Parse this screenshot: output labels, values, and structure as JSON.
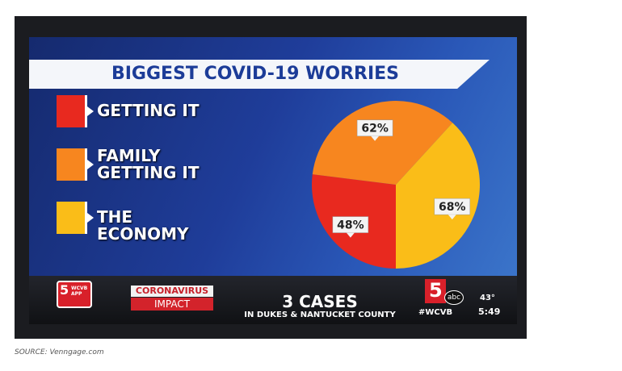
{
  "chart_data": {
    "type": "pie",
    "title": "BIGGEST COVID-19 WORRIES",
    "categories": [
      "GETTING IT",
      "FAMILY GETTING IT",
      "THE ECONOMY"
    ],
    "values": [
      48,
      62,
      68
    ],
    "value_labels": [
      "48%",
      "62%",
      "68%"
    ],
    "colors": [
      "#e8291f",
      "#f7861f",
      "#fabd18"
    ]
  },
  "ticker": {
    "app": "WCVB APP",
    "logo": "5",
    "segment_top": "CORONAVIRUS",
    "segment_bottom": "IMPACT",
    "headline": "3 CASES",
    "subline": "IN DUKES & NANTUCKET COUNTY",
    "network": "abc",
    "hashtag": "#WCVB",
    "temperature": "43°",
    "time": "5:49"
  },
  "source": "SOURCE: Venngage.com"
}
